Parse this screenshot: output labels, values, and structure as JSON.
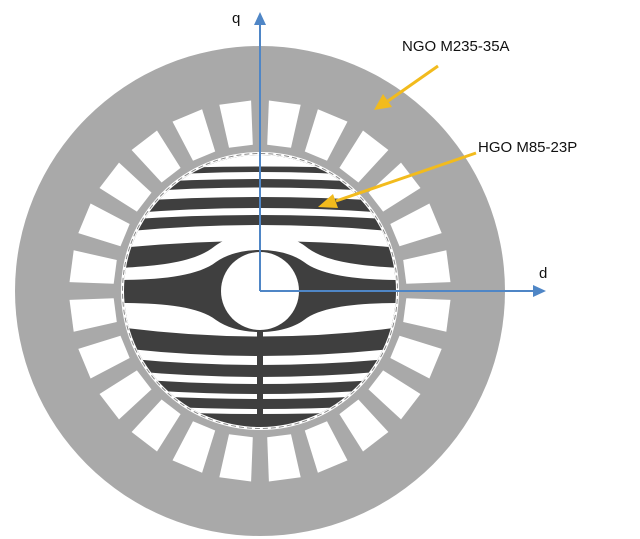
{
  "axes": {
    "q_label": "q",
    "d_label": "d"
  },
  "labels": {
    "stator_material": "NGO M235-35A",
    "rotor_material": "HGO M85-23P"
  },
  "colors": {
    "stator": "#a9a9a9",
    "rotor_steel": "#3f3f3f",
    "slots": "#ffffff",
    "axis": "#4f86c6",
    "arrow": "#f2bb1d"
  }
}
